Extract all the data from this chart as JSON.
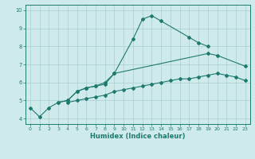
{
  "xlabel": "Humidex (Indice chaleur)",
  "color": "#1e7a6e",
  "bg_color": "#ceeaea",
  "grid_color": "#aacece",
  "spine_color": "#1e7a6e",
  "ylim": [
    3.7,
    10.3
  ],
  "xlim": [
    -0.5,
    23.5
  ],
  "yticks": [
    4,
    5,
    6,
    7,
    8,
    9,
    10
  ],
  "xticks": [
    0,
    1,
    2,
    3,
    4,
    5,
    6,
    7,
    8,
    9,
    10,
    11,
    12,
    13,
    14,
    15,
    16,
    17,
    18,
    19,
    20,
    21,
    22,
    23
  ],
  "line1_x": [
    0,
    1,
    2,
    3,
    4,
    5,
    6,
    7,
    8,
    9,
    11,
    12,
    13,
    14,
    17,
    18,
    19
  ],
  "line1_y": [
    4.6,
    4.1,
    4.6,
    4.9,
    5.0,
    5.5,
    5.7,
    5.8,
    5.9,
    6.5,
    8.4,
    9.5,
    9.7,
    9.4,
    8.5,
    8.2,
    8.0
  ],
  "line2_x": [
    3,
    4,
    5,
    6,
    7,
    8,
    9,
    19,
    20,
    23
  ],
  "line2_y": [
    4.9,
    5.0,
    5.5,
    5.7,
    5.8,
    6.0,
    6.5,
    7.6,
    7.5,
    6.9
  ],
  "line3_x": [
    4,
    5,
    6,
    7,
    8,
    9,
    10,
    11,
    12,
    13,
    14,
    15,
    16,
    17,
    18,
    19,
    20,
    21,
    22,
    23
  ],
  "line3_y": [
    4.9,
    5.0,
    5.1,
    5.2,
    5.3,
    5.5,
    5.6,
    5.7,
    5.8,
    5.9,
    6.0,
    6.1,
    6.2,
    6.2,
    6.3,
    6.4,
    6.5,
    6.4,
    6.3,
    6.1
  ]
}
